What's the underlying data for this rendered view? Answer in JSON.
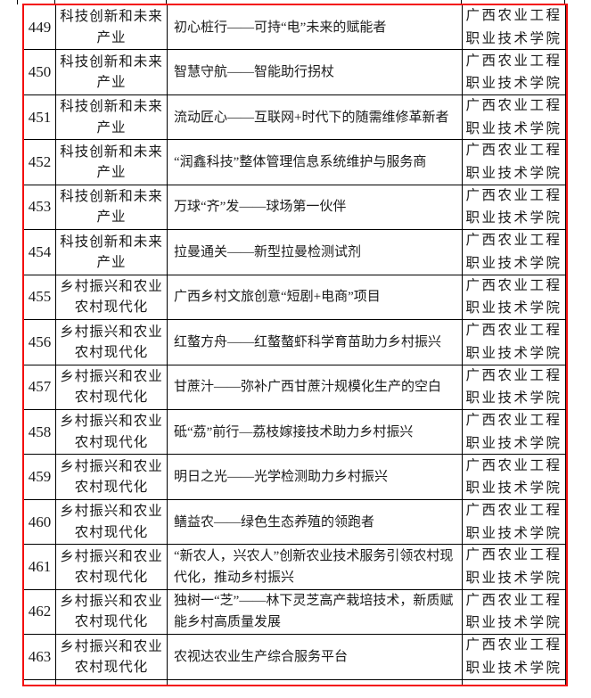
{
  "annotation": {
    "highlight_color": "#f30f0f",
    "gridline_color": "#000000"
  },
  "table": {
    "rows": [
      {
        "no": "449",
        "category": "科技创新和未来产业",
        "project": "初心桩行——可持“电”未来的赋能者",
        "institution": "广西农业工程职业技术学院"
      },
      {
        "no": "450",
        "category": "科技创新和未来产业",
        "project": "智慧守航——智能助行拐杖",
        "institution": "广西农业工程职业技术学院"
      },
      {
        "no": "451",
        "category": "科技创新和未来产业",
        "project": "流动匠心——互联网+时代下的随需维修革新者",
        "institution": "广西农业工程职业技术学院"
      },
      {
        "no": "452",
        "category": "科技创新和未来产业",
        "project": "“润鑫科技”整体管理信息系统维护与服务商",
        "institution": "广西农业工程职业技术学院"
      },
      {
        "no": "453",
        "category": "科技创新和未来产业",
        "project": "万球“齐”发——球场第一伙伴",
        "institution": "广西农业工程职业技术学院"
      },
      {
        "no": "454",
        "category": "科技创新和未来产业",
        "project": "拉曼通关——新型拉曼检测试剂",
        "institution": "广西农业工程职业技术学院"
      },
      {
        "no": "455",
        "category": "乡村振兴和农业农村现代化",
        "project": "广西乡村文旅创意“短剧+电商”项目",
        "institution": "广西农业工程职业技术学院"
      },
      {
        "no": "456",
        "category": "乡村振兴和农业农村现代化",
        "project": "红螯方舟——红螯螯虾科学育苗助力乡村振兴",
        "institution": "广西农业工程职业技术学院"
      },
      {
        "no": "457",
        "category": "乡村振兴和农业农村现代化",
        "project": "甘蔗汁——弥补广西甘蔗汁规模化生产的空白",
        "institution": "广西农业工程职业技术学院"
      },
      {
        "no": "458",
        "category": "乡村振兴和农业农村现代化",
        "project": "砥“荔”前行—荔枝嫁接技术助力乡村振兴",
        "institution": "广西农业工程职业技术学院"
      },
      {
        "no": "459",
        "category": "乡村振兴和农业农村现代化",
        "project": "明日之光——光学检测助力乡村振兴",
        "institution": "广西农业工程职业技术学院"
      },
      {
        "no": "460",
        "category": "乡村振兴和农业农村现代化",
        "project": "鳝益农——绿色生态养殖的领跑者",
        "institution": "广西农业工程职业技术学院"
      },
      {
        "no": "461",
        "category": "乡村振兴和农业农村现代化",
        "project": "“新农人，兴农人”创新农业技术服务引领农村现代化，推动乡村振兴",
        "institution": "广西农业工程职业技术学院"
      },
      {
        "no": "462",
        "category": "乡村振兴和农业农村现代化",
        "project": "独树一“芝”——林下灵芝高产栽培技术，新质赋能乡村高质量发展",
        "institution": "广西农业工程职业技术学院"
      },
      {
        "no": "463",
        "category": "乡村振兴和农业农村现代化",
        "project": "农视达农业生产综合服务平台",
        "institution": "广西农业工程职业技术学院"
      }
    ]
  }
}
